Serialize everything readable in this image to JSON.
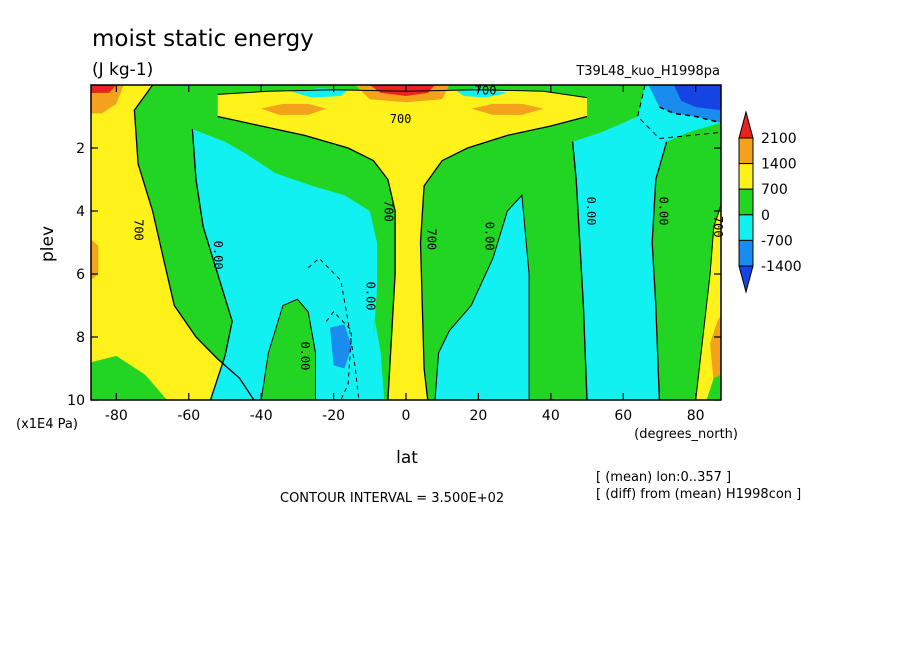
{
  "chart_data": {
    "type": "heatmap",
    "title": "moist static energy",
    "units": "(J kg-1)",
    "run_label": "T39L48_kuo_H1998pa",
    "xlabel": "lat",
    "x_units": "(degrees_north)",
    "ylabel": "plev",
    "y_units": "(x1E4 Pa)",
    "xlim": [
      -87,
      87
    ],
    "ylim": [
      10,
      0
    ],
    "x_ticks": [
      -80,
      -60,
      -40,
      -20,
      0,
      20,
      40,
      60,
      80
    ],
    "y_ticks": [
      2,
      4,
      6,
      8,
      10
    ],
    "contour_interval_text": "CONTOUR INTERVAL = 3.500E+02",
    "notes": [
      "[ (mean) lon:0..357 ]",
      "[ (diff) from (mean) H1998con ]"
    ],
    "colorbar": {
      "levels": [
        -1400,
        -700,
        0,
        700,
        1400,
        2100
      ],
      "labels": [
        "2100",
        "1400",
        "700",
        "0",
        "-700",
        "-1400"
      ],
      "colors": [
        "#e8231e",
        "#f4a11c",
        "#fff21a",
        "#21d522",
        "#12f1f1",
        "#1a8cf0",
        "#1544e3"
      ]
    },
    "contour_labels": [
      {
        "text": "700",
        "lon": 22,
        "plev": 0.3
      },
      {
        "text": "700",
        "lon": -1.5,
        "plev": 1.2
      },
      {
        "text": "700",
        "lon": -75,
        "plev": 4.6
      },
      {
        "text": "0.00",
        "lon": -53,
        "plev": 5.4
      },
      {
        "text": "700",
        "lon": -6,
        "plev": 4.0
      },
      {
        "text": "700",
        "lon": 6,
        "plev": 4.9
      },
      {
        "text": "0.00",
        "lon": 22,
        "plev": 4.8
      },
      {
        "text": "0.00",
        "lon": 50,
        "plev": 4.0
      },
      {
        "text": "0.00",
        "lon": 70,
        "plev": 4.0
      },
      {
        "text": "700",
        "lon": 85,
        "plev": 4.5
      },
      {
        "text": "0.00",
        "lon": -11,
        "plev": 6.7
      },
      {
        "text": "0.00",
        "lon": -29,
        "plev": 8.6
      }
    ]
  }
}
